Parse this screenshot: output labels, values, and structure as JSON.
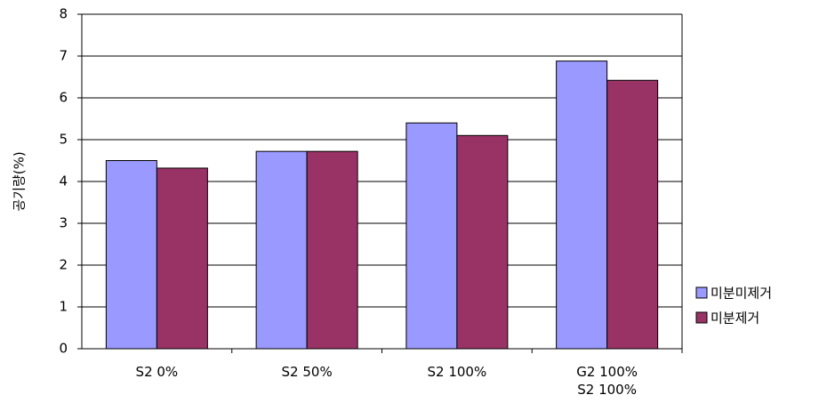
{
  "chart_data": {
    "type": "bar",
    "y_label": "공기량(%)",
    "categories": [
      "S2 0%",
      "S2 50%",
      "S2 100%",
      "G2 100%\nS2 100%"
    ],
    "series": [
      {
        "name": "미분미제거",
        "color": "#9999ff",
        "values": [
          4.5,
          4.72,
          5.4,
          6.88
        ]
      },
      {
        "name": "미분제거",
        "color": "#993366",
        "values": [
          4.32,
          4.72,
          5.1,
          6.42
        ]
      }
    ],
    "ylim": [
      0,
      8
    ],
    "yticks": [
      0,
      1,
      2,
      3,
      4,
      5,
      6,
      7,
      8
    ],
    "grid": true,
    "legend": "right"
  }
}
